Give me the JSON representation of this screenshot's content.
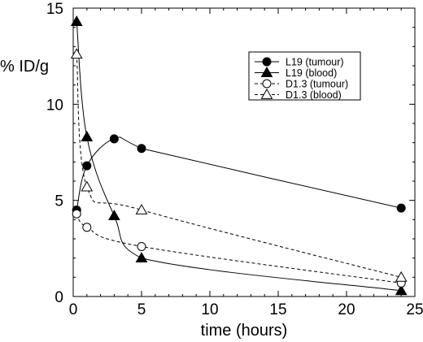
{
  "chart_data": {
    "type": "line",
    "title": "",
    "xlabel": "time (hours)",
    "ylabel": "% ID/g",
    "xlim": [
      0,
      25
    ],
    "ylim": [
      0,
      15
    ],
    "x_ticks": [
      0,
      5,
      10,
      15,
      20,
      25
    ],
    "y_ticks": [
      0,
      5,
      10,
      15
    ],
    "grid": false,
    "legend_position": "top-right",
    "series": [
      {
        "name": "L19 (tumour)",
        "marker": "filled-circle",
        "line": "solid",
        "color": "#000000",
        "points": [
          [
            0.25,
            4.5
          ],
          [
            1,
            6.8
          ],
          [
            3,
            8.2
          ],
          [
            5,
            7.7
          ],
          [
            24,
            4.6
          ]
        ]
      },
      {
        "name": "L19 (blood)",
        "marker": "filled-triangle",
        "line": "solid",
        "color": "#000000",
        "points": [
          [
            0.25,
            14.3
          ],
          [
            1,
            8.3
          ],
          [
            3,
            4.2
          ],
          [
            5,
            2.0
          ],
          [
            24,
            0.3
          ]
        ]
      },
      {
        "name": "D1.3 (tumour)",
        "marker": "open-circle",
        "line": "dashed",
        "color": "#000000",
        "points": [
          [
            0.25,
            4.3
          ],
          [
            1,
            3.6
          ],
          [
            5,
            2.6
          ],
          [
            24,
            0.7
          ]
        ]
      },
      {
        "name": "D1.3 (blood)",
        "marker": "open-triangle",
        "line": "dashed",
        "color": "#000000",
        "points": [
          [
            0.25,
            12.6
          ],
          [
            1,
            5.7
          ],
          [
            5,
            4.5
          ],
          [
            24,
            1.0
          ]
        ]
      }
    ]
  }
}
